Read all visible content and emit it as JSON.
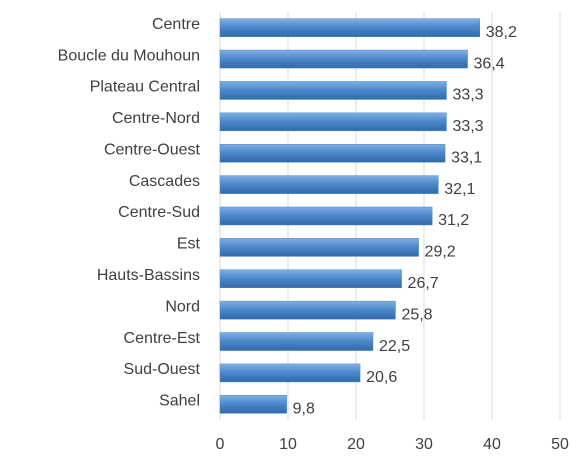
{
  "chart_data": {
    "type": "bar",
    "orientation": "horizontal",
    "categories": [
      "Centre",
      "Boucle du Mouhoun",
      "Plateau Central",
      "Centre-Nord",
      "Centre-Ouest",
      "Cascades",
      "Centre-Sud",
      "Est",
      "Hauts-Bassins",
      "Nord",
      "Centre-Est",
      "Sud-Ouest",
      "Sahel"
    ],
    "values": [
      38.2,
      36.4,
      33.3,
      33.3,
      33.1,
      32.1,
      31.2,
      29.2,
      26.7,
      25.8,
      22.5,
      20.6,
      9.8
    ],
    "value_labels": [
      "38,2",
      "36,4",
      "33,3",
      "33,3",
      "33,1",
      "32,1",
      "31,2",
      "29,2",
      "26,7",
      "25,8",
      "22,5",
      "20,6",
      "9,8"
    ],
    "color": "#4a86c8",
    "xlim": [
      0,
      50
    ],
    "xticks": [
      0,
      10,
      20,
      30,
      40,
      50
    ],
    "grid": true
  }
}
